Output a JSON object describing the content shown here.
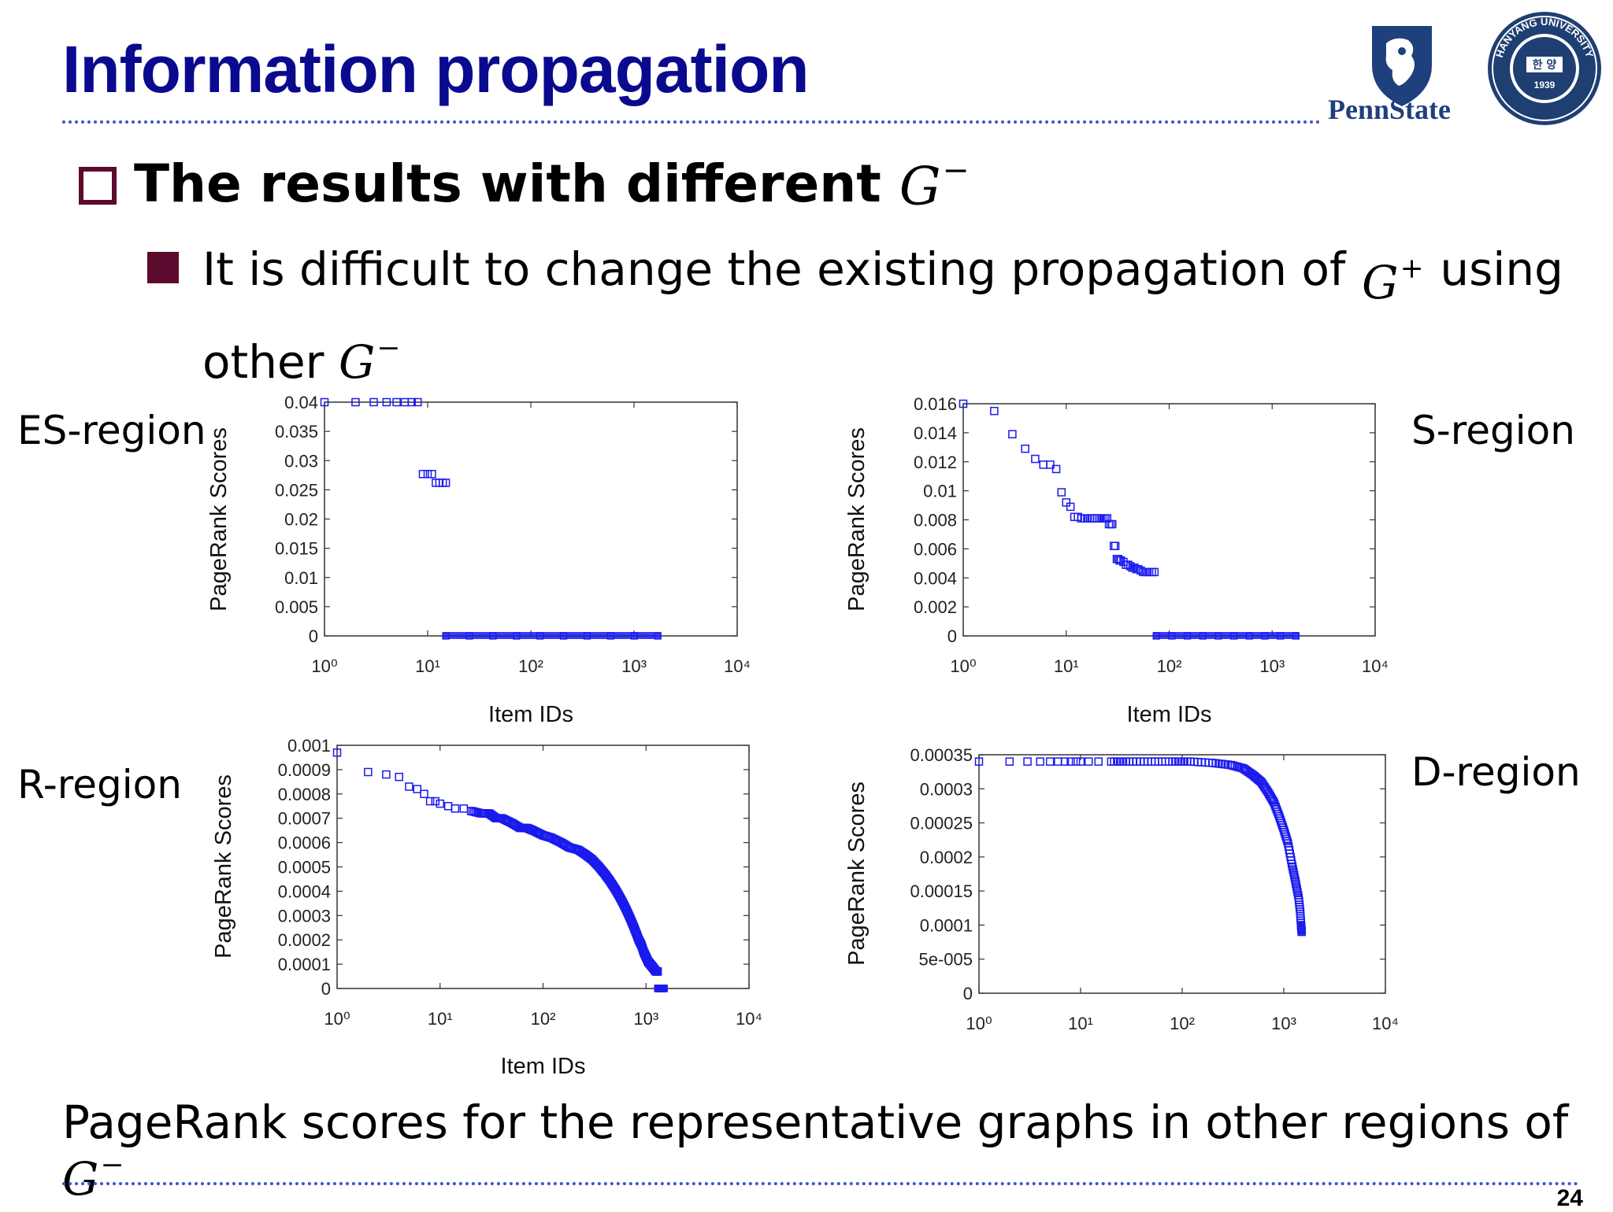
{
  "slide": {
    "title": "Information propagation",
    "heading": "The results with different",
    "heading_math": "G",
    "heading_sup": "−",
    "bullet_part1": "It is difficult to change the existing propagation of",
    "bullet_math1": "G",
    "bullet_sup1": "+",
    "bullet_part2": "using",
    "bullet_part3": "other",
    "bullet_math2": "G",
    "bullet_sup2": "−",
    "caption": "PageRank scores for the representative graphs in other regions of",
    "caption_math": "G",
    "caption_sup": "−",
    "page_number": "24",
    "pennstate_label": "PennState",
    "hanyang_arc": "HANYANG UNIVERSITY",
    "hanyang_year": "1939",
    "hanyang_korean": "한 양"
  },
  "colors": {
    "title": "#0a0a8f",
    "accent": "#5c0a2e",
    "marker": "#1a1aee",
    "rule": "#3b55c8"
  },
  "chart_data": [
    {
      "region_label": "ES-region",
      "type": "scatter",
      "xlabel": "Item IDs",
      "ylabel": "PageRank Scores",
      "xscale": "log",
      "xlim": [
        1,
        10000
      ],
      "ylim": [
        0,
        0.04
      ],
      "x_ticks": [
        "10⁰",
        "10¹",
        "10²",
        "10³",
        "10⁴"
      ],
      "y_ticks": [
        "0",
        "0.005",
        "0.01",
        "0.015",
        "0.02",
        "0.025",
        "0.03",
        "0.035",
        "0.04"
      ],
      "y_tick_values": [
        0,
        0.005,
        0.01,
        0.015,
        0.02,
        0.025,
        0.03,
        0.035,
        0.04
      ],
      "points": [
        [
          1,
          0.04
        ],
        [
          2,
          0.04
        ],
        [
          3,
          0.04
        ],
        [
          4,
          0.04
        ],
        [
          5,
          0.04
        ],
        [
          6,
          0.04
        ],
        [
          7,
          0.04
        ],
        [
          8,
          0.04
        ],
        [
          9,
          0.0277
        ],
        [
          10,
          0.0277
        ],
        [
          11,
          0.0277
        ],
        [
          12,
          0.0262
        ],
        [
          13,
          0.0262
        ],
        [
          14,
          0.0262
        ],
        [
          15,
          0.0262
        ]
      ],
      "zero_band": [
        15,
        1700
      ]
    },
    {
      "region_label": "S-region",
      "type": "scatter",
      "xlabel": "Item IDs",
      "ylabel": "PageRank Scores",
      "xscale": "log",
      "xlim": [
        1,
        10000
      ],
      "ylim": [
        0,
        0.016
      ],
      "x_ticks": [
        "10⁰",
        "10¹",
        "10²",
        "10³",
        "10⁴"
      ],
      "y_ticks": [
        "0",
        "0.002",
        "0.004",
        "0.006",
        "0.008",
        "0.01",
        "0.012",
        "0.014",
        "0.016"
      ],
      "y_tick_values": [
        0,
        0.002,
        0.004,
        0.006,
        0.008,
        0.01,
        0.012,
        0.014,
        0.016
      ],
      "points": [
        [
          1,
          0.016
        ],
        [
          2,
          0.0155
        ],
        [
          3,
          0.0139
        ],
        [
          4,
          0.0129
        ],
        [
          5,
          0.0122
        ],
        [
          6,
          0.0118
        ],
        [
          7,
          0.0118
        ],
        [
          8,
          0.0115
        ],
        [
          9,
          0.0099
        ],
        [
          10,
          0.0092
        ],
        [
          11,
          0.0089
        ],
        [
          12,
          0.0082
        ],
        [
          13,
          0.0082
        ],
        [
          14,
          0.0081
        ],
        [
          15,
          0.0081
        ],
        [
          16,
          0.0081
        ],
        [
          17,
          0.0081
        ],
        [
          18,
          0.0081
        ],
        [
          19,
          0.0081
        ],
        [
          20,
          0.0081
        ],
        [
          21,
          0.0081
        ],
        [
          22,
          0.0081
        ],
        [
          23,
          0.0081
        ],
        [
          24,
          0.0081
        ],
        [
          25,
          0.0081
        ],
        [
          26,
          0.0077
        ],
        [
          27,
          0.0077
        ],
        [
          28,
          0.0077
        ],
        [
          29,
          0.0062
        ],
        [
          30,
          0.0062
        ],
        [
          31,
          0.0053
        ],
        [
          32,
          0.0053
        ],
        [
          33,
          0.0052
        ],
        [
          34,
          0.0052
        ],
        [
          36,
          0.0051
        ],
        [
          38,
          0.0049
        ],
        [
          40,
          0.0049
        ],
        [
          42,
          0.0048
        ],
        [
          44,
          0.0047
        ],
        [
          46,
          0.0047
        ],
        [
          48,
          0.0046
        ],
        [
          50,
          0.0046
        ],
        [
          53,
          0.0045
        ],
        [
          56,
          0.0044
        ],
        [
          60,
          0.0044
        ],
        [
          64,
          0.0044
        ],
        [
          68,
          0.0044
        ],
        [
          72,
          0.0044
        ]
      ],
      "zero_band": [
        75,
        1700
      ]
    },
    {
      "region_label": "R-region",
      "type": "scatter",
      "xlabel": "Item IDs",
      "ylabel": "PageRank Scores",
      "xscale": "log",
      "xlim": [
        1,
        10000
      ],
      "ylim": [
        0,
        0.001
      ],
      "x_ticks": [
        "10⁰",
        "10¹",
        "10²",
        "10³",
        "10⁴"
      ],
      "y_ticks": [
        "0",
        "0.0001",
        "0.0002",
        "0.0003",
        "0.0004",
        "0.0005",
        "0.0006",
        "0.0007",
        "0.0008",
        "0.0009",
        "0.001"
      ],
      "y_tick_values": [
        0,
        0.0001,
        0.0002,
        0.0003,
        0.0004,
        0.0005,
        0.0006,
        0.0007,
        0.0008,
        0.0009,
        0.001
      ],
      "points": [
        [
          1,
          0.00097
        ],
        [
          2,
          0.00089
        ],
        [
          3,
          0.00088
        ],
        [
          4,
          0.00087
        ],
        [
          5,
          0.00083
        ],
        [
          6,
          0.00082
        ],
        [
          7,
          0.0008
        ],
        [
          8,
          0.00077
        ],
        [
          9,
          0.00077
        ],
        [
          10,
          0.00076
        ],
        [
          12,
          0.00075
        ],
        [
          14,
          0.00074
        ],
        [
          17,
          0.00074
        ],
        [
          20,
          0.00073
        ],
        [
          25,
          0.00072
        ],
        [
          30,
          0.00072
        ],
        [
          35,
          0.0007
        ],
        [
          40,
          0.0007
        ],
        [
          50,
          0.00068
        ],
        [
          60,
          0.00066
        ],
        [
          70,
          0.00066
        ],
        [
          80,
          0.00065
        ],
        [
          100,
          0.00063
        ],
        [
          120,
          0.00062
        ],
        [
          150,
          0.0006
        ],
        [
          180,
          0.00058
        ],
        [
          220,
          0.00057
        ],
        [
          260,
          0.00055
        ],
        [
          300,
          0.00053
        ],
        [
          350,
          0.0005
        ],
        [
          400,
          0.00047
        ],
        [
          450,
          0.00044
        ],
        [
          500,
          0.00041
        ],
        [
          550,
          0.00038
        ],
        [
          600,
          0.00035
        ],
        [
          650,
          0.00032
        ],
        [
          700,
          0.00029
        ],
        [
          750,
          0.00026
        ],
        [
          800,
          0.00023
        ],
        [
          850,
          0.0002
        ],
        [
          900,
          0.00018
        ],
        [
          950,
          0.00015
        ],
        [
          1000,
          0.00013
        ],
        [
          1050,
          0.00011
        ],
        [
          1100,
          0.0001
        ],
        [
          1150,
          9e-05
        ],
        [
          1200,
          8e-05
        ],
        [
          1250,
          7e-05
        ],
        [
          1300,
          7e-05
        ]
      ],
      "zero_band": [
        1300,
        1500
      ]
    },
    {
      "region_label": "D-region",
      "type": "scatter",
      "xlabel": "",
      "ylabel": "PageRank Scores",
      "xscale": "log",
      "xlim": [
        1,
        10000
      ],
      "ylim": [
        0,
        0.00035
      ],
      "x_ticks": [
        "10⁰",
        "10¹",
        "10²",
        "10³",
        "10⁴"
      ],
      "y_ticks": [
        "0",
        "5e-005",
        "0.0001",
        "0.00015",
        "0.0002",
        "0.00025",
        "0.0003",
        "0.00035"
      ],
      "y_tick_values": [
        0,
        5e-05,
        0.0001,
        0.00015,
        0.0002,
        0.00025,
        0.0003,
        0.00035
      ],
      "points": [
        [
          1,
          0.00034
        ],
        [
          2,
          0.00034
        ],
        [
          3,
          0.00034
        ],
        [
          4,
          0.00034
        ],
        [
          5,
          0.00034
        ],
        [
          6,
          0.00034
        ],
        [
          7,
          0.00034
        ],
        [
          8,
          0.00034
        ],
        [
          9,
          0.00034
        ],
        [
          10,
          0.00034
        ],
        [
          12,
          0.00034
        ],
        [
          15,
          0.00034
        ],
        [
          20,
          0.00034
        ],
        [
          30,
          0.00034
        ],
        [
          50,
          0.00034
        ],
        [
          80,
          0.00034
        ],
        [
          120,
          0.00034
        ],
        [
          200,
          0.000338
        ],
        [
          300,
          0.000335
        ],
        [
          400,
          0.00033
        ],
        [
          500,
          0.00032
        ],
        [
          600,
          0.00031
        ],
        [
          700,
          0.000295
        ],
        [
          800,
          0.00028
        ],
        [
          900,
          0.00026
        ],
        [
          1000,
          0.00024
        ],
        [
          1100,
          0.00022
        ],
        [
          1200,
          0.00019
        ],
        [
          1300,
          0.000165
        ],
        [
          1400,
          0.00014
        ],
        [
          1450,
          0.00012
        ],
        [
          1480,
          0.0001
        ],
        [
          1500,
          9e-05
        ]
      ]
    }
  ],
  "chart_layout_note": ""
}
